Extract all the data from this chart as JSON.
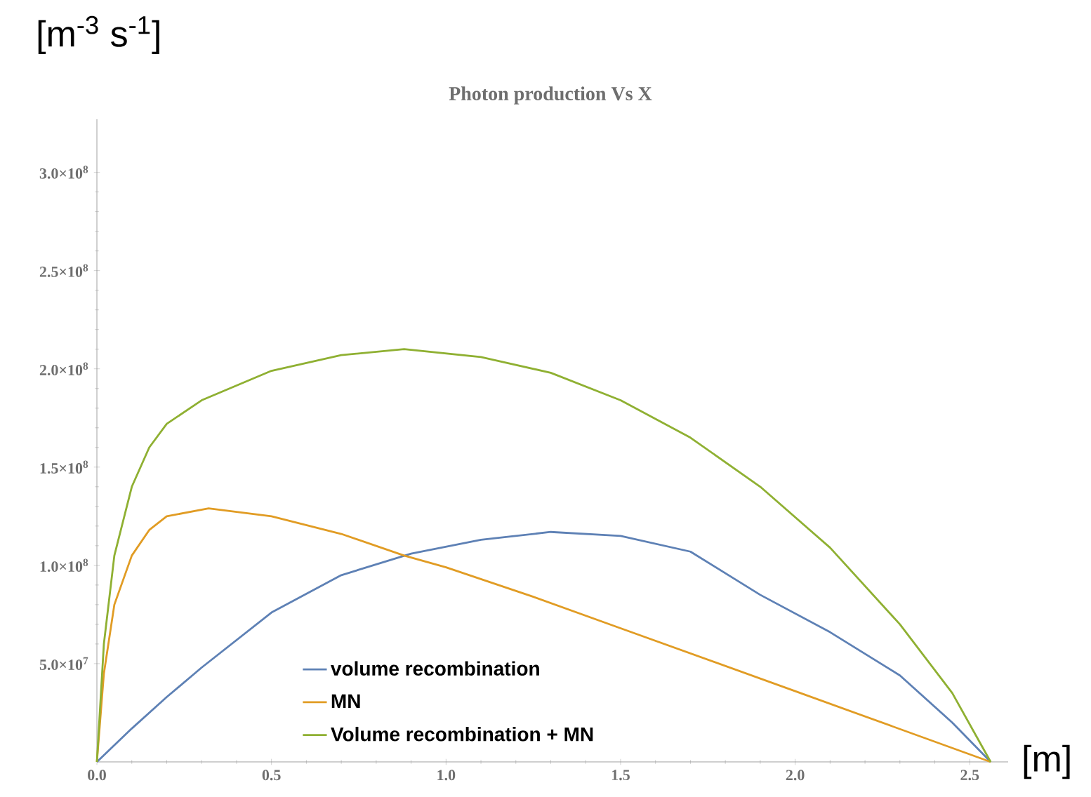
{
  "chart_data": {
    "type": "line",
    "title": "Photon production Vs X",
    "xlabel": "[m]",
    "ylabel": "[m$^{-3}$ s$^{-1}$]",
    "xlim": [
      0,
      2.61
    ],
    "ylim": [
      0,
      327000000
    ],
    "xticks": [
      {
        "value": 0,
        "label": "0.0"
      },
      0.5,
      {
        "value": 1,
        "label": "1.0"
      },
      1.5,
      {
        "value": 2,
        "label": "2.0"
      },
      2.5
    ],
    "yticks": [
      {
        "value": 50000000,
        "label": "5.0×10$^{7}$"
      },
      {
        "value": 100000000,
        "label": "1.0×10$^{8}$"
      },
      {
        "value": 150000000,
        "label": "1.5×10$^{8}$"
      },
      {
        "value": 200000000,
        "label": "2.0×10$^{8}$"
      },
      {
        "value": 250000000,
        "label": "2.5×10$^{8}$"
      },
      {
        "value": 300000000,
        "label": "3.0×10$^{8}$"
      }
    ],
    "legend": "bottom",
    "series": [
      {
        "name": "volume recombination",
        "color": "#5e81b5",
        "x": [
          0,
          0.1,
          0.2,
          0.3,
          0.5,
          0.7,
          0.9,
          1.1,
          1.3,
          1.5,
          1.7,
          1.9,
          2.1,
          2.3,
          2.45,
          2.56
        ],
        "values": [
          0,
          17000000,
          33000000,
          48000000,
          76000000,
          95000000,
          106000000,
          113000000,
          117000000,
          115000000,
          107000000,
          85000000,
          66000000,
          44000000,
          20000000,
          0
        ]
      },
      {
        "name": "MN",
        "color": "#e19c24",
        "x": [
          0,
          0.02,
          0.05,
          0.1,
          0.15,
          0.2,
          0.32,
          0.5,
          0.7,
          0.88,
          1.0,
          1.25,
          1.5,
          2.0,
          2.56
        ],
        "values": [
          0,
          45000000,
          80000000,
          105000000,
          118000000,
          125000000,
          129000000,
          125000000,
          116000000,
          105000000,
          99000000,
          84000000,
          68000000,
          36000000,
          0
        ]
      },
      {
        "name": "Volume recombination + MN",
        "color": "#8fb032",
        "x": [
          0,
          0.02,
          0.05,
          0.1,
          0.15,
          0.2,
          0.3,
          0.5,
          0.7,
          0.88,
          1.1,
          1.3,
          1.5,
          1.7,
          1.9,
          2.1,
          2.3,
          2.45,
          2.56
        ],
        "values": [
          0,
          60000000,
          105000000,
          140000000,
          160000000,
          172000000,
          184000000,
          199000000,
          207000000,
          210000000,
          206000000,
          198000000,
          184000000,
          165000000,
          140000000,
          109000000,
          70000000,
          35000000,
          0
        ]
      }
    ]
  }
}
